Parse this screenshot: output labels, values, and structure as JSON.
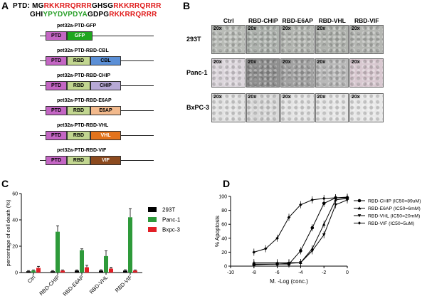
{
  "panels": {
    "a": "A",
    "b": "B",
    "c": "C",
    "d": "D"
  },
  "sequence": {
    "line1": {
      "prefix": "PTD: MG",
      "red1": "RKKRRQRRR",
      "black": "GHSG",
      "red2": "RKKRRQRRR"
    },
    "line2": {
      "black1": "GHI",
      "green": "YPYDVPDYA",
      "black2": "GDPG",
      "red": "RKKRRQRRR"
    }
  },
  "constructs": [
    {
      "title": "pet32a-PTD-GFP",
      "boxes": [
        {
          "label": "PTD",
          "color": "#c466c4"
        },
        {
          "label": "GFP",
          "color": "#1ea61e"
        }
      ]
    },
    {
      "title": "pet32a-PTD-RBD-CBL",
      "boxes": [
        {
          "label": "PTD",
          "color": "#c466c4"
        },
        {
          "label": "RBD",
          "color": "#c2d690"
        },
        {
          "label": "CBL",
          "color": "#5b8fd6"
        }
      ]
    },
    {
      "title": "pet32a-PTD-RBD-CHIP",
      "boxes": [
        {
          "label": "PTD",
          "color": "#c466c4"
        },
        {
          "label": "RBD",
          "color": "#c2d690"
        },
        {
          "label": "CHIP",
          "color": "#b7a9d6"
        }
      ]
    },
    {
      "title": "pet32a-PTD-RBD-E6AP",
      "boxes": [
        {
          "label": "PTD",
          "color": "#c466c4"
        },
        {
          "label": "RBD",
          "color": "#c2d690"
        },
        {
          "label": "E6AP",
          "color": "#f2b98c"
        }
      ]
    },
    {
      "title": "pet32a-PTD-RBD-VHL",
      "boxes": [
        {
          "label": "PTD",
          "color": "#c466c4"
        },
        {
          "label": "RBD",
          "color": "#c2d690"
        },
        {
          "label": "VHL",
          "color": "#e3731c"
        }
      ]
    },
    {
      "title": "pet32a-PTD-RBD-VIF",
      "boxes": [
        {
          "label": "PTD",
          "color": "#c466c4"
        },
        {
          "label": "RBD",
          "color": "#c2d690"
        },
        {
          "label": "VIF",
          "color": "#8c4a1e"
        }
      ]
    }
  ],
  "micrographs": {
    "columns": [
      "Ctrl",
      "RBD-CHIP",
      "RBD-E6AP",
      "RBD-VHL",
      "RBD-VIF"
    ],
    "rows": [
      "293T",
      "Panc-1",
      "BxPC-3"
    ],
    "magnification": "20x"
  },
  "chart_data": [
    {
      "type": "bar",
      "ylabel": "percentage of cell death (%)",
      "ylim": [
        0,
        60
      ],
      "yticks": [
        "0",
        "20",
        "40",
        "60"
      ],
      "categories": [
        "Ctrl",
        "RBD-CHIP",
        "RBD-E6AP",
        "RBD-VHL",
        "RBD-VIF"
      ],
      "series": [
        {
          "name": "293T",
          "color": "#000000",
          "values": [
            1,
            1,
            1.5,
            1.5,
            1.5
          ],
          "errors": [
            0.5,
            0.5,
            0.5,
            0.6,
            0.6
          ]
        },
        {
          "name": "Panc-1",
          "color": "#2e9a3a",
          "values": [
            1.5,
            31,
            17,
            12.5,
            42
          ],
          "errors": [
            0.5,
            4.5,
            1,
            4,
            6.5
          ]
        },
        {
          "name": "Bxpc-3",
          "color": "#e21f26",
          "values": [
            3.5,
            1.5,
            4,
            3,
            1.5
          ],
          "errors": [
            1.2,
            0.5,
            1.5,
            1,
            0.5
          ]
        }
      ],
      "legend": "right"
    },
    {
      "type": "line",
      "xlabel": "M. -Log (conc.)",
      "ylabel": "% Apoptosis",
      "xlim": [
        -10,
        0
      ],
      "ylim": [
        0,
        100
      ],
      "xticks": [
        "-10",
        "-8",
        "-6",
        "-4",
        "-2",
        "0"
      ],
      "yticks": [
        "0",
        "20",
        "40",
        "60",
        "80",
        "100"
      ],
      "series": [
        {
          "name": "RBD-CHIP (IC50=89uM)",
          "marker": "circle",
          "x": [
            -8,
            -6,
            -5,
            -4,
            -3,
            -2,
            -1,
            0
          ],
          "y": [
            2,
            3,
            3,
            22,
            55,
            90,
            98,
            98
          ]
        },
        {
          "name": "RBD-E6AP (IC50=6mM)",
          "marker": "triangle-up",
          "x": [
            -8,
            -6,
            -5,
            -4,
            -3,
            -2,
            -1,
            0
          ],
          "y": [
            5,
            5,
            5,
            5,
            25,
            60,
            95,
            97
          ]
        },
        {
          "name": "RBD-VHL (IC50=20mM)",
          "marker": "triangle-down",
          "x": [
            -8,
            -6,
            -5,
            -4,
            -3,
            -2,
            -1,
            0
          ],
          "y": [
            3,
            3,
            4,
            5,
            22,
            45,
            88,
            95
          ]
        },
        {
          "name": "RBD-VIF (IC50=5uM)",
          "marker": "diamond",
          "x": [
            -8,
            -7,
            -6,
            -5,
            -4,
            -3,
            -2,
            -1,
            0
          ],
          "y": [
            20,
            25,
            40,
            70,
            88,
            95,
            97,
            98,
            99
          ]
        }
      ],
      "legend": "right"
    }
  ]
}
